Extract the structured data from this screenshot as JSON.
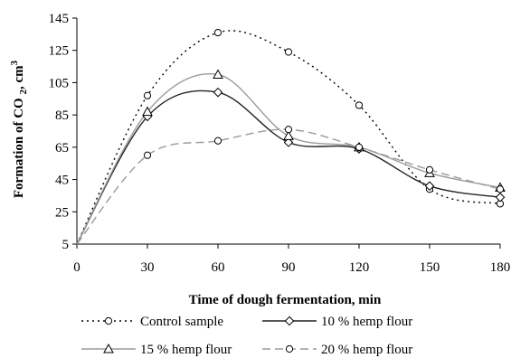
{
  "chart_data": {
    "type": "line",
    "xlabel": "Time of dough fermentation, min",
    "ylabel": "Formation of CO 2, cm3",
    "ylabel_parts": {
      "main": "Formation of CO ",
      "sub": "2",
      "tail": ", cm",
      "sup": "3"
    },
    "xlim": [
      0,
      180
    ],
    "ylim": [
      5,
      145
    ],
    "xticks": [
      0,
      30,
      60,
      90,
      120,
      150,
      180
    ],
    "yticks": [
      5,
      25,
      45,
      65,
      85,
      105,
      125,
      145
    ],
    "grid": false,
    "legend_position": "bottom",
    "series": [
      {
        "name": "Control sample",
        "marker": "circle",
        "style": "dotted",
        "color": "#000000",
        "x": [
          0,
          30,
          60,
          90,
          120,
          150,
          180
        ],
        "y": [
          5,
          97,
          136,
          124,
          91,
          39,
          30
        ]
      },
      {
        "name": "10 % hemp flour",
        "marker": "diamond",
        "style": "solid",
        "color": "#222222",
        "x": [
          0,
          30,
          60,
          90,
          120,
          150,
          180
        ],
        "y": [
          5,
          84,
          99,
          68,
          64,
          41,
          34
        ]
      },
      {
        "name": "15 % hemp flour",
        "marker": "triangle",
        "style": "solid",
        "color": "#9a9a9a",
        "x": [
          0,
          30,
          60,
          90,
          120,
          150,
          180
        ],
        "y": [
          5,
          87,
          110,
          72,
          65,
          49,
          40
        ]
      },
      {
        "name": "20 % hemp flour",
        "marker": "circle",
        "style": "dashed",
        "color": "#9a9a9a",
        "x": [
          0,
          30,
          60,
          90,
          120,
          150,
          180
        ],
        "y": [
          5,
          60,
          69,
          76,
          65,
          51,
          39
        ]
      }
    ]
  }
}
